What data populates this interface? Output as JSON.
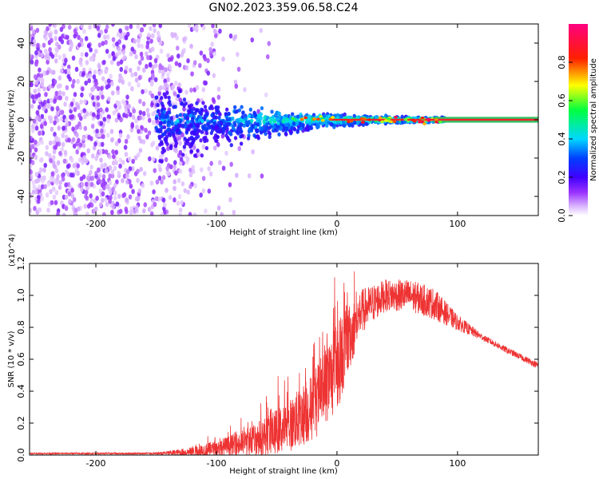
{
  "chart_data": [
    {
      "type": "heatmap",
      "title": "GN02.2023.359.06.58.C24",
      "xlabel": "Height of straight line (km)",
      "ylabel": "Frequency (Hz)",
      "xlim": [
        -255,
        167
      ],
      "ylim": [
        -50,
        50
      ],
      "x_ticks": [
        -200,
        -100,
        0,
        100
      ],
      "y_ticks": [
        -40,
        -20,
        0,
        20,
        40
      ],
      "colorbar": {
        "label": "Normalized spectral amplitude",
        "range": [
          0.0,
          1.0
        ],
        "ticks": [
          "0.0",
          "0.2",
          "0.4",
          "0.6",
          "0.8"
        ],
        "colormap": [
          "#ffffff",
          "#d9b3ff",
          "#7a00ff",
          "#0000ff",
          "#00d8ff",
          "#00ff00",
          "#ffff00",
          "#ff0000",
          "#ff0080"
        ]
      },
      "features": {
        "noise_region_x": [
          -255,
          -95
        ],
        "signal_line_frequency_hz": 0,
        "signal_start_x": -150
      }
    },
    {
      "type": "line",
      "xlabel": "Height of straight line (km)",
      "ylabel": "SNR (10 * v/v)",
      "y_scale_note": "(x10^4)",
      "xlim": [
        -255,
        167
      ],
      "ylim": [
        0.0,
        1.2
      ],
      "x_ticks": [
        -200,
        -100,
        0,
        100
      ],
      "y_ticks": [
        "0.0",
        "0.2",
        "0.4",
        "0.6",
        "0.8",
        "1.0",
        "1.2"
      ],
      "color": "#ee3333",
      "envelope": {
        "x": [
          -255,
          -200,
          -150,
          -120,
          -100,
          -80,
          -60,
          -40,
          -20,
          0,
          20,
          40,
          60,
          80,
          100,
          120,
          140,
          167
        ],
        "y_mid": [
          0.01,
          0.01,
          0.01,
          0.02,
          0.04,
          0.07,
          0.12,
          0.18,
          0.3,
          0.55,
          0.9,
          1.0,
          1.0,
          0.95,
          0.83,
          0.74,
          0.66,
          0.56
        ],
        "y_amp": [
          0.005,
          0.005,
          0.006,
          0.03,
          0.05,
          0.08,
          0.12,
          0.16,
          0.22,
          0.28,
          0.14,
          0.1,
          0.1,
          0.1,
          0.05,
          0.02,
          0.02,
          0.02
        ]
      }
    }
  ]
}
